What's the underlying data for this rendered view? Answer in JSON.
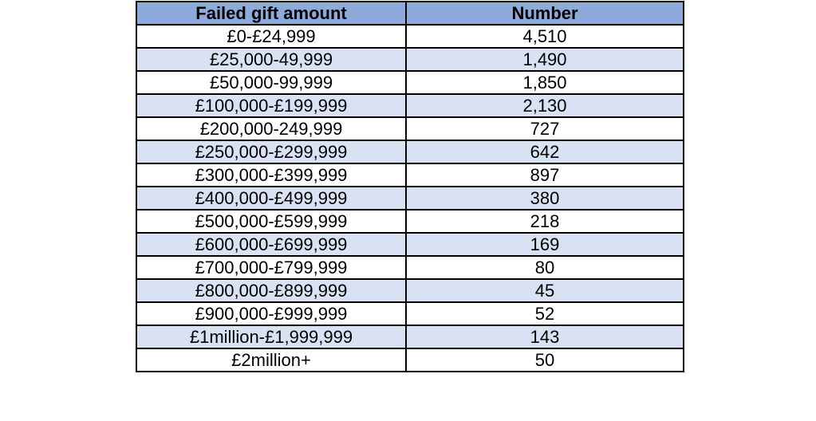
{
  "chart_data": {
    "type": "table",
    "columns": [
      "Failed gift amount",
      "Number"
    ],
    "rows": [
      [
        "£0-£24,999",
        "4,510"
      ],
      [
        "£25,000-49,999",
        "1,490"
      ],
      [
        "£50,000-99,999",
        "1,850"
      ],
      [
        "£100,000-£199,999",
        "2,130"
      ],
      [
        "£200,000-249,999",
        "727"
      ],
      [
        "£250,000-£299,999",
        "642"
      ],
      [
        "£300,000-£399,999",
        "897"
      ],
      [
        "£400,000-£499,999",
        "380"
      ],
      [
        "£500,000-£599,999",
        "218"
      ],
      [
        "£600,000-£699,999",
        "169"
      ],
      [
        "£700,000-£799,999",
        "80"
      ],
      [
        "£800,000-£899,999",
        "45"
      ],
      [
        "£900,000-£999,999",
        "52"
      ],
      [
        "£1million-£1,999,999",
        "143"
      ],
      [
        "£2million+",
        "50"
      ]
    ],
    "header_color": "#8eaadb",
    "band_color": "#d9e2f3"
  }
}
